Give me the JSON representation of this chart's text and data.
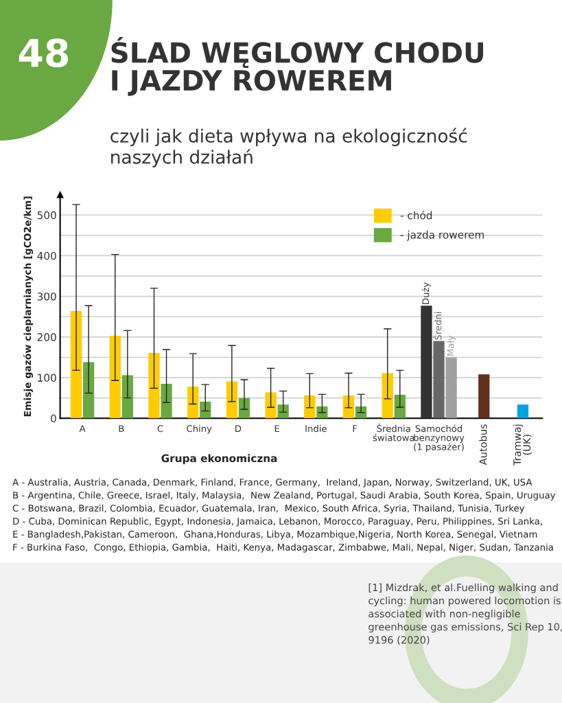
{
  "chart_data": {
    "type": "bar",
    "title": "ŚLAD WĘGLOWY CHODU\nI JAZDY ROWEREM",
    "subtitle": "czyli jak dieta wpływa na ekologiczność\nnaszych działań",
    "xlabel": "Grupa ekonomiczna",
    "ylabel": "Emisje gazów cieplarnianych [gCO2e/km]",
    "categories": [
      "A",
      "B",
      "C",
      "Chiny",
      "D",
      "E",
      "Indie",
      "F",
      "Średnia\nświatowa",
      "Samochód\nbenzynowy\n(1 pasażer)",
      "Autobus",
      "Tramwaj\n(UK)"
    ],
    "series": [
      {
        "name": "- chód",
        "color": "#ffcc00",
        "values": [
          264,
          203,
          161,
          78,
          91,
          64,
          56,
          56,
          111,
          null,
          null,
          null
        ],
        "errors": [
          [
            118,
            526
          ],
          [
            93,
            403
          ],
          [
            74,
            320
          ],
          [
            35,
            159
          ],
          [
            41,
            179
          ],
          [
            27,
            123
          ],
          [
            26,
            110
          ],
          [
            26,
            111
          ],
          [
            48,
            220
          ],
          null,
          null,
          null
        ]
      },
      {
        "name": "- jazda rowerem",
        "color": "#6aa842",
        "values": [
          138,
          106,
          85,
          41,
          50,
          34,
          29,
          29,
          58,
          null,
          null,
          null
        ],
        "errors": [
          [
            62,
            277
          ],
          [
            50,
            216
          ],
          [
            39,
            169
          ],
          [
            18,
            83
          ],
          [
            22,
            95
          ],
          [
            15,
            67
          ],
          [
            14,
            59
          ],
          [
            14,
            59
          ],
          [
            27,
            118
          ],
          null,
          null,
          null
        ]
      },
      {
        "name": "Duży",
        "color": "#333333",
        "values": [
          null,
          null,
          null,
          null,
          null,
          null,
          null,
          null,
          null,
          277,
          null,
          null
        ]
      },
      {
        "name": "Średni",
        "color": "#666666",
        "values": [
          null,
          null,
          null,
          null,
          null,
          null,
          null,
          null,
          null,
          190,
          null,
          null
        ]
      },
      {
        "name": "Mały",
        "color": "#a0a0a0",
        "values": [
          null,
          null,
          null,
          null,
          null,
          null,
          null,
          null,
          null,
          150,
          null,
          null
        ]
      },
      {
        "colors": [
          null,
          null,
          null,
          null,
          null,
          null,
          null,
          null,
          null,
          null,
          "#62321e",
          "#00a3e0"
        ],
        "values": [
          null,
          null,
          null,
          null,
          null,
          null,
          null,
          null,
          null,
          null,
          108,
          34
        ]
      }
    ],
    "ylim": [
      0,
      550
    ],
    "yticks": [
      0,
      {
        "value": 50,
        "label": null
      },
      100,
      {
        "value": 150,
        "label": null
      },
      200,
      {
        "value": 250,
        "label": null
      },
      300,
      {
        "value": 350,
        "label": null
      },
      400,
      {
        "value": 450,
        "label": null
      },
      500
    ],
    "grid": "y",
    "legend": "top right",
    "annotations": [
      "48",
      "A - Australia, Austria, Canada, Denmark, Finland, France, Germany,  Ireland, Japan, Norway, Switzerland, UK, USA",
      "B - Argentina, Chile, Greece, Israel, Italy, Malaysia,  New Zealand, Portugal, Saudi Arabia, South Korea, Spain, Uruguay",
      "C - Botswana, Brazil, Colombia, Ecuador, Guatemala, Iran,  Mexico, South Africa, Syria, Thailand, Tunisia, Turkey",
      "D - Cuba, Dominican Republic, Egypt, Indonesia, Jamaica, Lebanon, Morocco, Paraguay, Peru, Philippines, Sri Lanka,",
      "E - Bangladesh,Pakistan, Cameroon,  Ghana,Honduras, Libya, Mozambique,Nigeria, North Korea, Senegal, Vietnam",
      "F - Burkina Faso,  Congo, Ethiopia, Gambia,  Haiti, Kenya, Madagascar, Zimbabwe, Mali, Nepal, Niger, Sudan, Tanzania",
      "[1] Mizdrak, et al.Fuelling walking and\ncycling: human powered locomotion is\nassociated with non-negligible\ngreenhouse gas emissions, Sci Rep 10,\n9196 (2020)"
    ]
  }
}
